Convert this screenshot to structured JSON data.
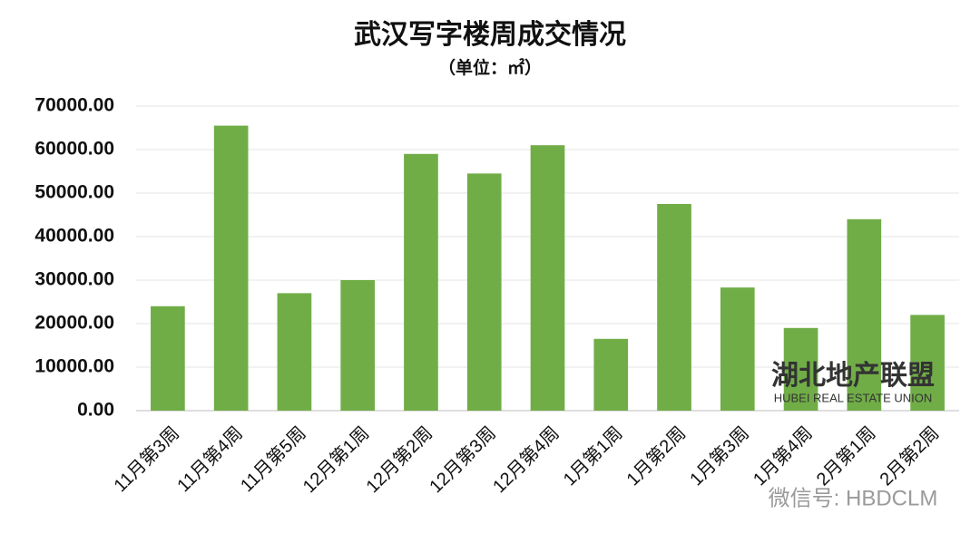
{
  "chart_data": {
    "type": "bar",
    "title": "武汉写字楼周成交情况",
    "subtitle": "（单位：㎡）",
    "categories": [
      "11月第3周",
      "11月第4周",
      "11月第5周",
      "12月第1周",
      "12月第2周",
      "12月第3周",
      "12月第4周",
      "1月第1周",
      "1月第2周",
      "1月第3周",
      "1月第4周",
      "2月第1周",
      "2月第2周"
    ],
    "values": [
      24000,
      65500,
      27000,
      30000,
      59000,
      54500,
      61000,
      16500,
      47500,
      28300,
      19000,
      44000,
      22000
    ],
    "color": "#70ad47",
    "ylim": [
      0,
      70000
    ],
    "yticks": [
      {
        "value": 0,
        "label": "0.00"
      },
      {
        "value": 10000,
        "label": "10000.00"
      },
      {
        "value": 20000,
        "label": "20000.00"
      },
      {
        "value": 30000,
        "label": "30000.00"
      },
      {
        "value": 40000,
        "label": "40000.00"
      },
      {
        "value": 50000,
        "label": "50000.00"
      },
      {
        "value": 60000,
        "label": "60000.00"
      },
      {
        "value": 70000,
        "label": "70000.00"
      }
    ],
    "grid": true,
    "annotations": [
      "湖北地产联盟",
      "HUBEI REAL ESTATE UNION",
      "微信号: HBDCLM"
    ]
  }
}
